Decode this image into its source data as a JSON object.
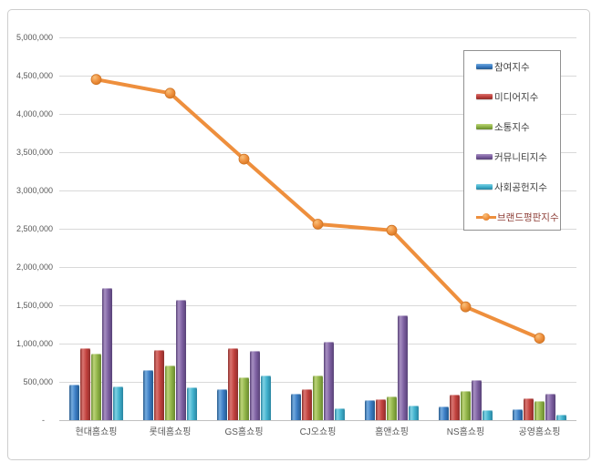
{
  "palette": {
    "background": "#ffffff",
    "frame_border": "#cdcdcd",
    "gridline": "#d9d9d9",
    "axis_line": "#c0c0c0",
    "axis_text": "#595959",
    "legend_border": "#919191",
    "legend_text": "#404040",
    "legend_line_label_text": "#8e3f38"
  },
  "chart_data": {
    "type": "bar",
    "title": "",
    "xlabel": "",
    "ylabel": "",
    "grid": true,
    "legend_position": "top-right",
    "ylim": [
      0,
      5000000
    ],
    "y_tick_interval": 500000,
    "y_tick_labels": [
      "-",
      "500,000",
      "1,000,000",
      "1,500,000",
      "2,000,000",
      "2,500,000",
      "3,000,000",
      "3,500,000",
      "4,000,000",
      "4,500,000",
      "5,000,000"
    ],
    "categories": [
      "현대홈쇼핑",
      "롯데홈쇼핑",
      "GS홈쇼핑",
      "CJ오쇼핑",
      "홈앤쇼핑",
      "NS홈쇼핑",
      "공영홈쇼핑"
    ],
    "series": [
      {
        "name": "참여지수",
        "type": "bar",
        "color": "#3a7cc4",
        "color_light": "#74abdf",
        "color_dark": "#265a8c",
        "values": [
          470000,
          650000,
          410000,
          340000,
          260000,
          175000,
          145000
        ]
      },
      {
        "name": "미디어지수",
        "type": "bar",
        "color": "#c0403c",
        "color_light": "#da7571",
        "color_dark": "#8e2f2c",
        "values": [
          945000,
          915000,
          945000,
          400000,
          270000,
          330000,
          285000
        ]
      },
      {
        "name": "소통지수",
        "type": "bar",
        "color": "#8fb347",
        "color_light": "#bcd478",
        "color_dark": "#69892f",
        "values": [
          865000,
          710000,
          555000,
          585000,
          315000,
          385000,
          255000
        ]
      },
      {
        "name": "커뮤니티지수",
        "type": "bar",
        "color": "#7c5fa0",
        "color_light": "#a78fc2",
        "color_dark": "#584277",
        "values": [
          1730000,
          1570000,
          905000,
          1020000,
          1365000,
          525000,
          350000
        ]
      },
      {
        "name": "사회공헌지수",
        "type": "bar",
        "color": "#3fb0cc",
        "color_light": "#7fd2e4",
        "color_dark": "#2a84a0",
        "values": [
          435000,
          425000,
          580000,
          155000,
          190000,
          130000,
          75000
        ]
      },
      {
        "name": "브랜드평판지수",
        "type": "line",
        "color": "#ee8f3d",
        "marker_light": "#f9c07a",
        "marker_dark": "#d4751f",
        "marker_edge": "#cf7526",
        "values": [
          4450000,
          4270000,
          3410000,
          2560000,
          2480000,
          1480000,
          1070000
        ]
      }
    ]
  }
}
